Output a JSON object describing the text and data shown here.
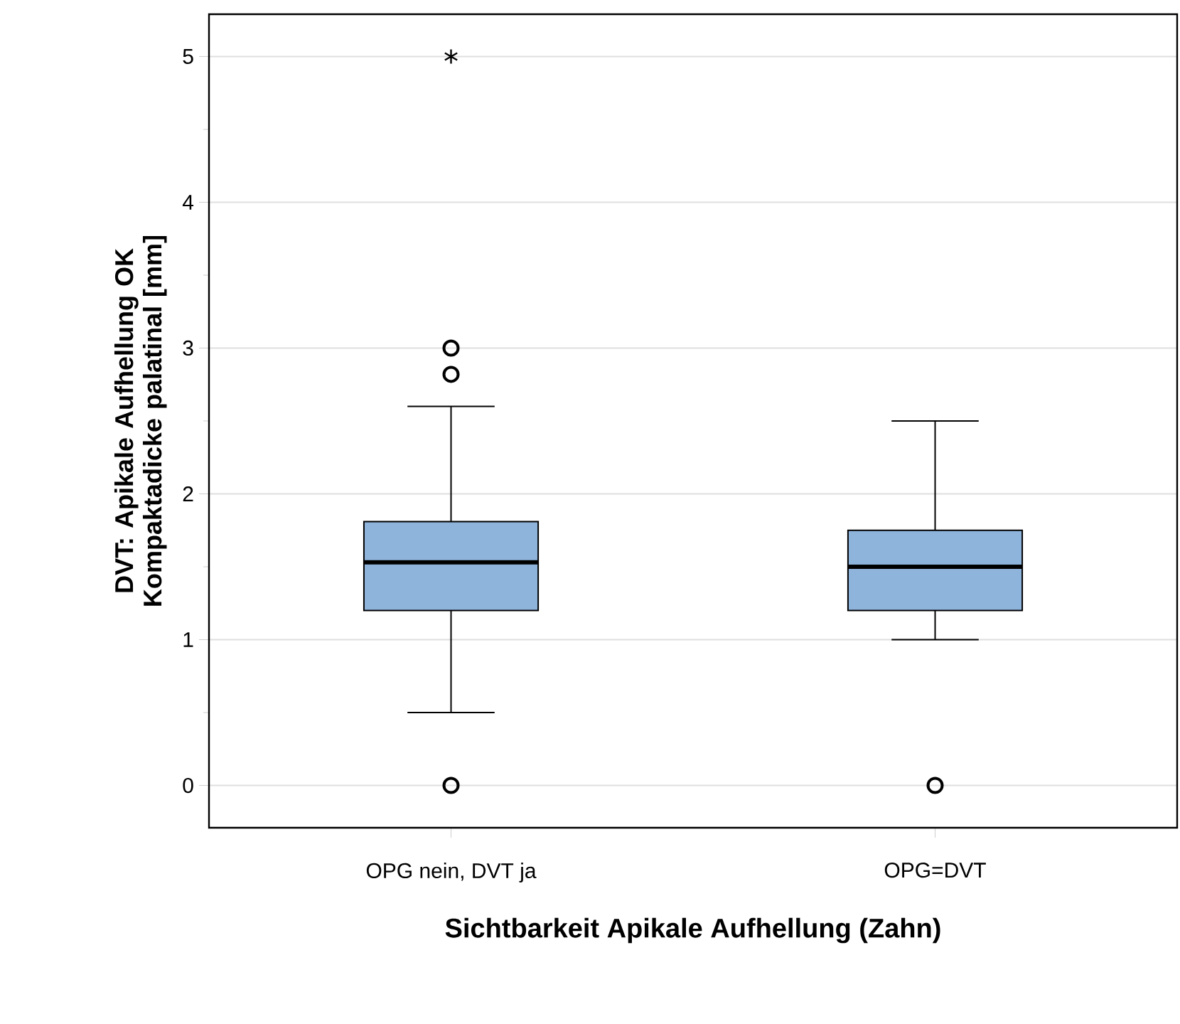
{
  "chart_data": {
    "type": "box",
    "xlabel": "Sichtbarkeit Apikale Aufhellung (Zahn)",
    "ylabel": "DVT: Apikale Aufhellung OK Kompaktadicke palatinal [mm]",
    "categories": [
      "OPG nein, DVT ja",
      "OPG=DVT"
    ],
    "boxes": [
      {
        "low": 0.5,
        "q1": 1.2,
        "median": 1.53,
        "q3": 1.81,
        "high": 2.6,
        "outliers": [
          0,
          2.82,
          3.0,
          5.0
        ]
      },
      {
        "low": 1.0,
        "q1": 1.2,
        "median": 1.5,
        "q3": 1.75,
        "high": 2.5,
        "outliers": [
          0
        ]
      }
    ],
    "color": "#8fb4dc",
    "ylim": [
      -0.29,
      5.29
    ],
    "yticks": [
      0,
      {
        "value": 0.5,
        "label": null
      },
      1,
      {
        "value": 1.5,
        "label": null
      },
      2,
      {
        "value": 2.5,
        "label": null
      },
      3,
      {
        "value": 3.5,
        "label": null
      },
      4,
      {
        "value": 4.5,
        "label": null
      },
      5
    ],
    "grid": "y"
  }
}
